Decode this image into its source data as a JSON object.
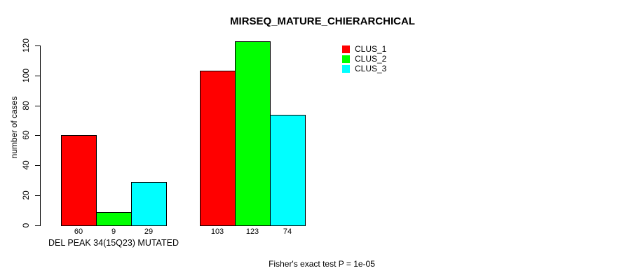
{
  "chart_data": {
    "type": "bar",
    "title": "MIRSEQ_MATURE_CHIERARCHICAL",
    "ylabel": "number of cases",
    "xlabel": "",
    "ylim": [
      0,
      130
    ],
    "yticks": [
      0,
      20,
      40,
      60,
      80,
      100,
      120
    ],
    "categories": [
      "DEL PEAK 34(15Q23) MUTATED",
      ""
    ],
    "series": [
      {
        "name": "CLUS_1",
        "color": "#ff0000",
        "values": [
          60,
          103
        ]
      },
      {
        "name": "CLUS_2",
        "color": "#00ff00",
        "values": [
          9,
          123
        ]
      },
      {
        "name": "CLUS_3",
        "color": "#00ffff",
        "values": [
          29,
          74
        ]
      }
    ],
    "bar_value_labels": [
      [
        "60",
        "9",
        "29"
      ],
      [
        "103",
        "123",
        "74"
      ]
    ],
    "group_label": "DEL PEAK 34(15Q23) MUTATED",
    "annotation": "Fisher's exact test P = 1e-05",
    "legend_position": "top-right",
    "grid": false,
    "bar_border_color": "#000000",
    "background_color": "#ffffff"
  }
}
